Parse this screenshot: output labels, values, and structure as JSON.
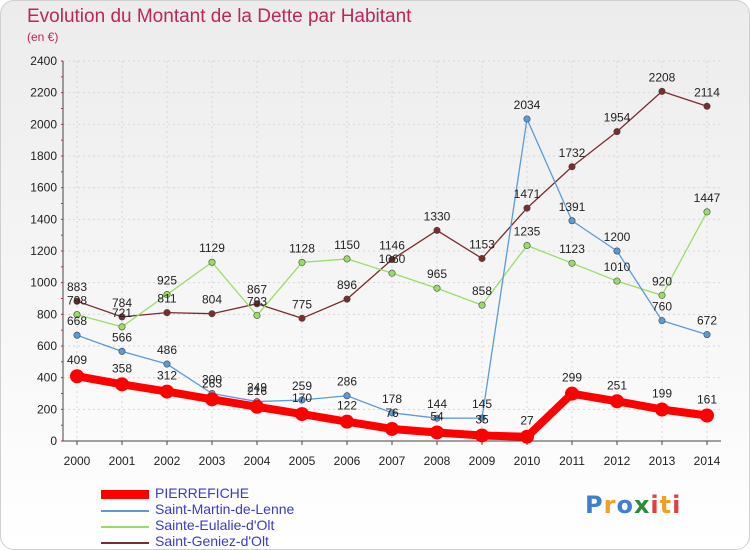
{
  "title": "Evolution du Montant de la Dette par Habitant",
  "unit": "(en €)",
  "logo": {
    "letters": [
      "P",
      "r",
      "o",
      "x",
      "i",
      "t",
      "i"
    ],
    "colors": [
      "#3f7fd1",
      "#f0a028",
      "#3f7fd1",
      "#2e8b3a",
      "#e04040",
      "#f0a028",
      "#e04040"
    ]
  },
  "chart_data": {
    "type": "line",
    "title": "Evolution du Montant de la Dette par Habitant",
    "ylabel": "(en €)",
    "ylim": [
      0,
      2400
    ],
    "yticks": [
      0,
      200,
      400,
      600,
      800,
      1000,
      1200,
      1400,
      1600,
      1800,
      2000,
      2200,
      2400
    ],
    "x": [
      2000,
      2001,
      2002,
      2003,
      2004,
      2005,
      2006,
      2007,
      2008,
      2009,
      2010,
      2011,
      2012,
      2013,
      2014
    ],
    "grid": true,
    "legend": "bottom-left",
    "series": [
      {
        "name": "PIERREFICHE",
        "color": "#ff0000",
        "width": 8,
        "marker": 7,
        "labelColor": "#222222",
        "values": [
          409,
          358,
          312,
          263,
          216,
          170,
          122,
          76,
          54,
          35,
          27,
          299,
          251,
          199,
          161
        ]
      },
      {
        "name": "Saint-Martin-de-Lenne",
        "color": "#5b9bd5",
        "width": 1.3,
        "marker": 3.2,
        "labelColor": "#222222",
        "values": [
          668,
          566,
          486,
          300,
          249,
          259,
          286,
          178,
          144,
          145,
          2034,
          1391,
          1200,
          760,
          672
        ]
      },
      {
        "name": "Sainte-Eulalie-d'Olt",
        "color": "#99dd66",
        "width": 1.3,
        "marker": 3.2,
        "labelColor": "#222222",
        "values": [
          798,
          721,
          925,
          1129,
          793,
          1128,
          1150,
          1060,
          965,
          858,
          1235,
          1123,
          1010,
          920,
          1447
        ]
      },
      {
        "name": "Saint-Geniez-d'Olt",
        "color": "#7b2c2c",
        "width": 1.3,
        "marker": 3.2,
        "labelColor": "#222222",
        "values": [
          883,
          784,
          811,
          804,
          867,
          775,
          896,
          1146,
          1330,
          1153,
          1471,
          1732,
          1954,
          2208,
          2114
        ]
      }
    ]
  }
}
